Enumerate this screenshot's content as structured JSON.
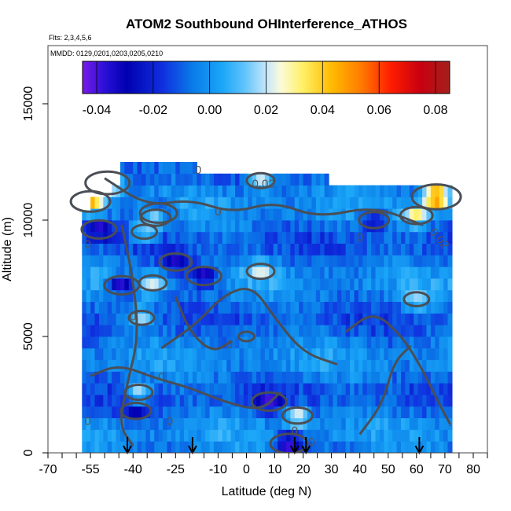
{
  "chart_data": {
    "type": "heatmap",
    "title": "ATOM2 Southbound OHInterference_ATHOS",
    "subtitle_flights": "Flts: 2,3,4,5,6",
    "subtitle_dates": "MMDD: 0129,0201,0203,0205,0210",
    "xlabel": "Latitude (deg N)",
    "ylabel": "Altitude (m)",
    "xlim": [
      -70,
      85
    ],
    "ylim": [
      0,
      17500
    ],
    "x_tick_labels": [
      "-70",
      "-55",
      "-40",
      "-25",
      "-10",
      "0",
      "10",
      "20",
      "30",
      "40",
      "50",
      "60",
      "70",
      "80"
    ],
    "x_minor_ticks": [
      -65,
      -60,
      -50,
      -45,
      -35,
      -30,
      -20,
      -15,
      -5,
      5,
      15,
      25,
      35,
      45,
      55,
      65,
      75,
      85
    ],
    "y_tick_labels": [
      "0",
      "5000",
      "10000",
      "15000"
    ],
    "colorbar": {
      "range": [
        -0.045,
        0.085
      ],
      "tick_labels": [
        "-0.04",
        "-0.02",
        "0.00",
        "0.02",
        "0.04",
        "0.06",
        "0.08"
      ]
    },
    "contour_labels": [
      "0",
      "0.02",
      "0.02",
      "0",
      "0",
      "0",
      "0",
      "0",
      "0",
      "0",
      "0",
      "0",
      "0"
    ],
    "flight_marker_latitudes": [
      -42,
      -19,
      17,
      21,
      61
    ],
    "data_extent": {
      "lat_min": -58,
      "lat_max": 72,
      "alt_min": 0,
      "alt_max": 12500
    },
    "columns": [
      {
        "lat": -58,
        "top": 10400
      },
      {
        "lat": -55,
        "top": 11000
      },
      {
        "lat": -48,
        "top": 11500
      },
      {
        "lat": -45,
        "top": 12500
      },
      {
        "lat": -20,
        "top": 12500
      },
      {
        "lat": -18,
        "top": 12000
      },
      {
        "lat": 28,
        "top": 12000
      },
      {
        "lat": 29,
        "top": 11500
      },
      {
        "lat": 66,
        "top": 11500
      },
      {
        "lat": 72,
        "top": 11500
      }
    ],
    "hotspots": [
      {
        "lat": -52,
        "alt": 9600,
        "value": -0.04
      },
      {
        "lat": -44,
        "alt": 7200,
        "value": -0.04
      },
      {
        "lat": -39,
        "alt": 1800,
        "value": -0.03
      },
      {
        "lat": -31,
        "alt": 10300,
        "value": -0.045
      },
      {
        "lat": -25,
        "alt": 8200,
        "value": -0.035
      },
      {
        "lat": -15,
        "alt": 7600,
        "value": -0.04
      },
      {
        "lat": 8,
        "alt": 2200,
        "value": -0.04
      },
      {
        "lat": 15,
        "alt": 400,
        "value": -0.045
      },
      {
        "lat": 45,
        "alt": 10000,
        "value": -0.03
      },
      {
        "lat": -33,
        "alt": 7300,
        "value": 0.025
      },
      {
        "lat": 5,
        "alt": 7800,
        "value": 0.025
      },
      {
        "lat": -37,
        "alt": 5800,
        "value": 0.02
      },
      {
        "lat": -38,
        "alt": 2600,
        "value": 0.025
      },
      {
        "lat": 18,
        "alt": 1600,
        "value": 0.03
      },
      {
        "lat": -36,
        "alt": 9500,
        "value": 0.02
      },
      {
        "lat": 60,
        "alt": 6600,
        "value": 0.02
      },
      {
        "lat": 60,
        "alt": 10200,
        "value": 0.035
      },
      {
        "lat": -32,
        "alt": 10100,
        "value": 0.03
      },
      {
        "lat": -55,
        "alt": 10800,
        "value": 0.05
      },
      {
        "lat": -49,
        "alt": 11600,
        "value": 0.06
      },
      {
        "lat": 5,
        "alt": 11700,
        "value": 0.025
      },
      {
        "lat": 67,
        "alt": 11000,
        "value": 0.07
      },
      {
        "lat": 0,
        "alt": 5000,
        "value": 0.0
      }
    ]
  }
}
